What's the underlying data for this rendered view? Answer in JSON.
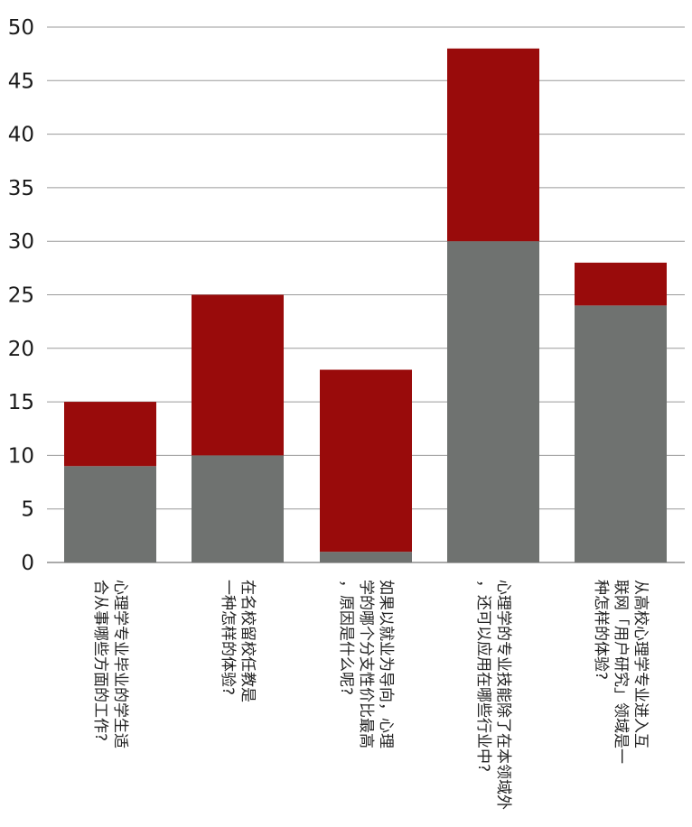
{
  "chart_data": {
    "type": "bar",
    "stacked": true,
    "categories": [
      [
        "心理学专业毕业的学生适",
        "合从事哪些方面的工作?"
      ],
      [
        "在名校留校任教是",
        "一种怎样的体验?"
      ],
      [
        "如果以就业为导向，心理",
        "学的哪个分支性价比最高",
        "，原因是什么呢?"
      ],
      [
        "心理学的专业技能除了在本领域外",
        "，还可以应用在哪些行业中?"
      ],
      [
        "从高校心理学专业进入互",
        "联网「用户研究」领域是一",
        "种怎样的体验?"
      ]
    ],
    "series": [
      {
        "values": [
          9,
          10,
          1,
          30,
          24
        ],
        "color": "#6f7270"
      },
      {
        "values": [
          6,
          15,
          17,
          18,
          4
        ],
        "color": "#990b0b"
      }
    ],
    "ylim": [
      0,
      50
    ],
    "yticks": [
      "0",
      "5",
      "10",
      "15",
      "20",
      "25",
      "30",
      "35",
      "40",
      "45",
      "50"
    ],
    "grid": true,
    "legend": "none",
    "title": "",
    "xlabel": "",
    "ylabel": ""
  }
}
